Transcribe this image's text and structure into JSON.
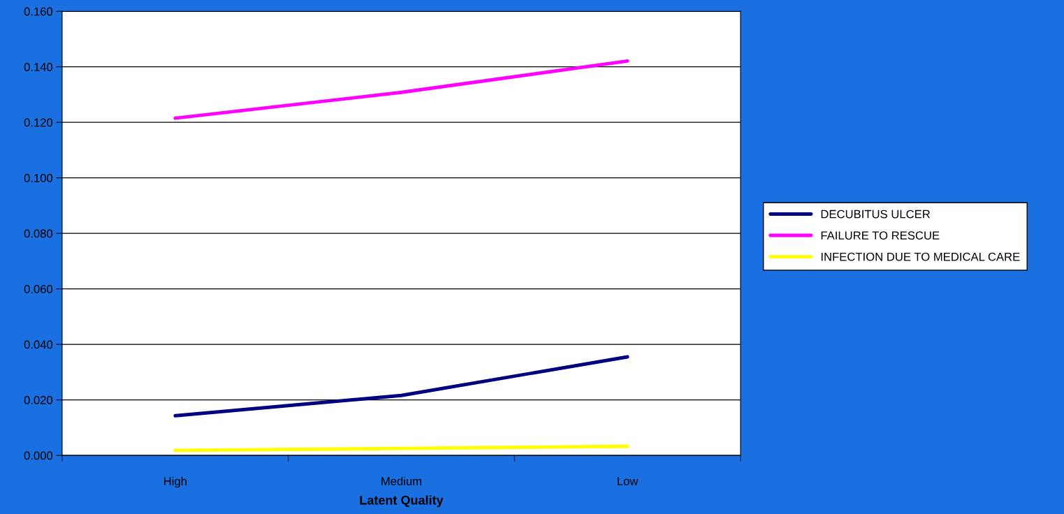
{
  "chart_data": {
    "type": "line",
    "xlabel": "Latent Quality",
    "categories": [
      "High",
      "Medium",
      "Low"
    ],
    "series": [
      {
        "name": "DECUBITUS ULCER",
        "color": "#000080",
        "values": [
          0.0143,
          0.0216,
          0.0355
        ]
      },
      {
        "name": "FAILURE TO RESCUE",
        "color": "#ff00ff",
        "values": [
          0.1215,
          0.1308,
          0.1421
        ]
      },
      {
        "name": "INFECTION DUE TO MEDICAL CARE",
        "color": "#ffff00",
        "values": [
          0.0018,
          0.0025,
          0.0033
        ]
      }
    ],
    "ylim": [
      0,
      0.16
    ],
    "yticks": [
      {
        "value": 0,
        "label": "0.000"
      },
      {
        "value": 0.02,
        "label": "0.020"
      },
      {
        "value": 0.04,
        "label": "0.040"
      },
      {
        "value": 0.06,
        "label": "0.060"
      },
      {
        "value": 0.08,
        "label": "0.080"
      },
      {
        "value": 0.1,
        "label": "0.100"
      },
      {
        "value": 0.12,
        "label": "0.120"
      },
      {
        "value": 0.14,
        "label": "0.140"
      },
      {
        "value": 0.16,
        "label": "0.160"
      }
    ],
    "grid": "y",
    "legend": "right",
    "marker": "none",
    "line_style": "solid"
  }
}
